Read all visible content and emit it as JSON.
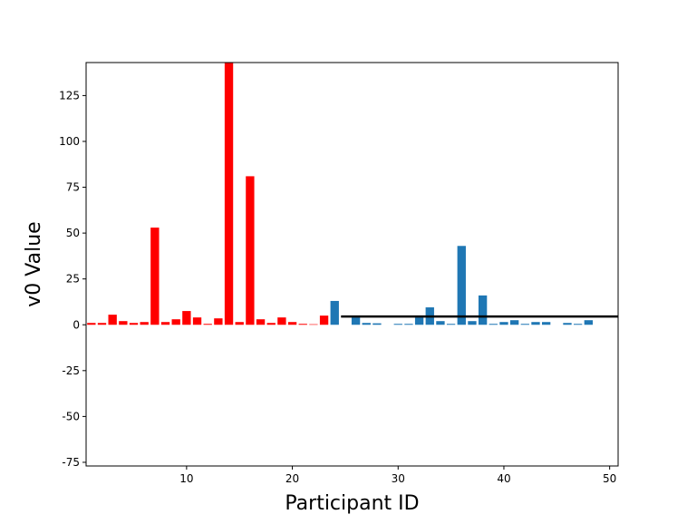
{
  "chart_data": {
    "type": "bar",
    "title": "",
    "xlabel": "Participant ID",
    "ylabel": "v0 Value",
    "xlim": [
      0.5,
      50.8
    ],
    "ylim": [
      -77,
      143
    ],
    "xticks": [
      10,
      20,
      30,
      40,
      50
    ],
    "yticks": [
      -75,
      -50,
      -25,
      0,
      25,
      50,
      75,
      100,
      125
    ],
    "grid": false,
    "legend": "none",
    "series": [
      {
        "color": "#ff0000",
        "x": [
          1,
          2,
          3,
          4,
          5,
          6,
          7,
          8,
          9,
          10,
          11,
          12,
          13,
          14,
          15,
          16,
          17,
          18,
          19,
          20,
          21,
          22,
          23
        ],
        "values": [
          1,
          1,
          5.5,
          2,
          1,
          1.5,
          53,
          1.5,
          3,
          7.5,
          4,
          0.5,
          3.5,
          143,
          1.5,
          81,
          3,
          1,
          4,
          1.5,
          0.5,
          0.3,
          5
        ]
      },
      {
        "color": "#1f77b4",
        "x": [
          24,
          25,
          26,
          27,
          28,
          29,
          30,
          31,
          32,
          33,
          34,
          35,
          36,
          37,
          38,
          39,
          40,
          41,
          42,
          43,
          44,
          45,
          46,
          47,
          48
        ],
        "values": [
          13,
          0,
          4,
          1,
          0.8,
          0,
          0.5,
          0.5,
          4,
          9.5,
          2,
          0.5,
          43,
          2,
          16,
          0.5,
          1.5,
          2.5,
          0.5,
          1.5,
          1.5,
          0,
          1,
          0.5,
          2.5
        ]
      }
    ],
    "reference_line": {
      "y": 4.5,
      "x_start": 24.6,
      "x_end": 50.8,
      "color": "#000000"
    }
  }
}
